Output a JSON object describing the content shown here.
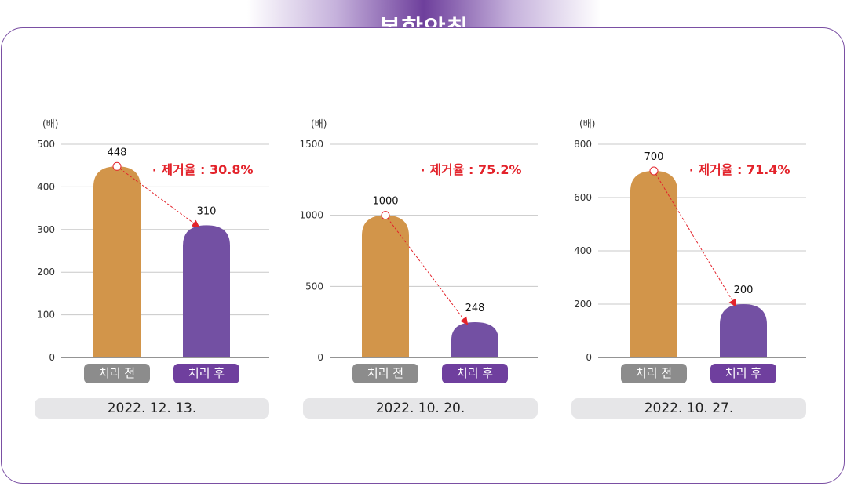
{
  "title": "복합악취",
  "colors": {
    "before_bar": "#d2954a",
    "after_bar": "#7350a3",
    "accent": "#6e3f9c",
    "removal_text": "#e3232b",
    "gridline": "#c8c8c8"
  },
  "chart_data": [
    {
      "type": "bar",
      "unit_label": "(배)",
      "categories": [
        "처리 전",
        "처리 후"
      ],
      "values": [
        448,
        310
      ],
      "ylim": [
        0,
        500
      ],
      "yticks": [
        0,
        100,
        200,
        300,
        400,
        500
      ],
      "removal_rate": "제거율 : 30.8%",
      "date": "2022. 12. 13."
    },
    {
      "type": "bar",
      "unit_label": "(배)",
      "categories": [
        "처리 전",
        "처리 후"
      ],
      "values": [
        1000,
        248
      ],
      "ylim": [
        0,
        1500
      ],
      "yticks": [
        0,
        500,
        1000,
        1500
      ],
      "removal_rate": "제거율 : 75.2%",
      "date": "2022. 10. 20."
    },
    {
      "type": "bar",
      "unit_label": "(배)",
      "categories": [
        "처리 전",
        "처리 후"
      ],
      "values": [
        700,
        200
      ],
      "ylim": [
        0,
        800
      ],
      "yticks": [
        0,
        200,
        400,
        600,
        800
      ],
      "removal_rate": "제거율 : 71.4%",
      "date": "2022. 10. 27."
    }
  ]
}
